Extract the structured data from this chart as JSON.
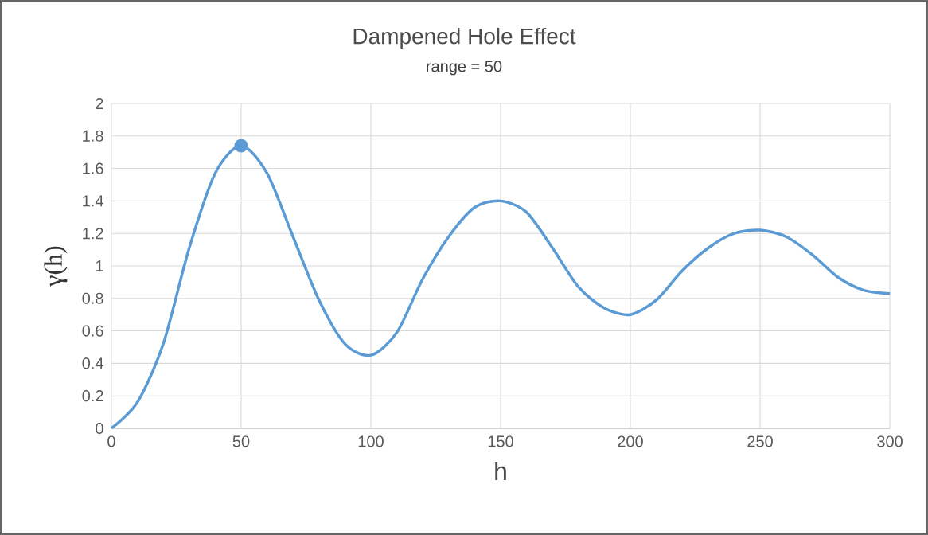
{
  "chart_data": {
    "type": "line",
    "title": "Dampened Hole Effect",
    "subtitle": "range = 50",
    "xlabel": "h",
    "ylabel": "γ(h)",
    "series": [
      {
        "color": "#5b9bd5",
        "marker": "none",
        "x": [
          0,
          10,
          20,
          30,
          40,
          50,
          60,
          70,
          80,
          90,
          100,
          110,
          120,
          130,
          140,
          150,
          160,
          170,
          180,
          190,
          200,
          210,
          220,
          230,
          240,
          250,
          260,
          270,
          280,
          290,
          300
        ],
        "values": [
          0,
          0.16,
          0.52,
          1.11,
          1.57,
          1.74,
          1.57,
          1.18,
          0.79,
          0.52,
          0.45,
          0.59,
          0.92,
          1.18,
          1.36,
          1.4,
          1.33,
          1.11,
          0.87,
          0.74,
          0.7,
          0.79,
          0.97,
          1.11,
          1.2,
          1.22,
          1.18,
          1.07,
          0.93,
          0.85,
          0.83
        ]
      },
      {
        "type": "scatter",
        "color": "#5b9bd5",
        "marker": "circle",
        "x": [
          50
        ],
        "values": [
          1.74
        ]
      }
    ],
    "xlim": [
      0,
      300
    ],
    "xticks": [
      0,
      50,
      100,
      150,
      200,
      250,
      300
    ],
    "ylim": [
      0,
      2
    ],
    "yticks": [
      0,
      0.2,
      0.4,
      0.6,
      0.8,
      1,
      1.2,
      1.4,
      1.6,
      1.8,
      2
    ],
    "grid": true
  }
}
